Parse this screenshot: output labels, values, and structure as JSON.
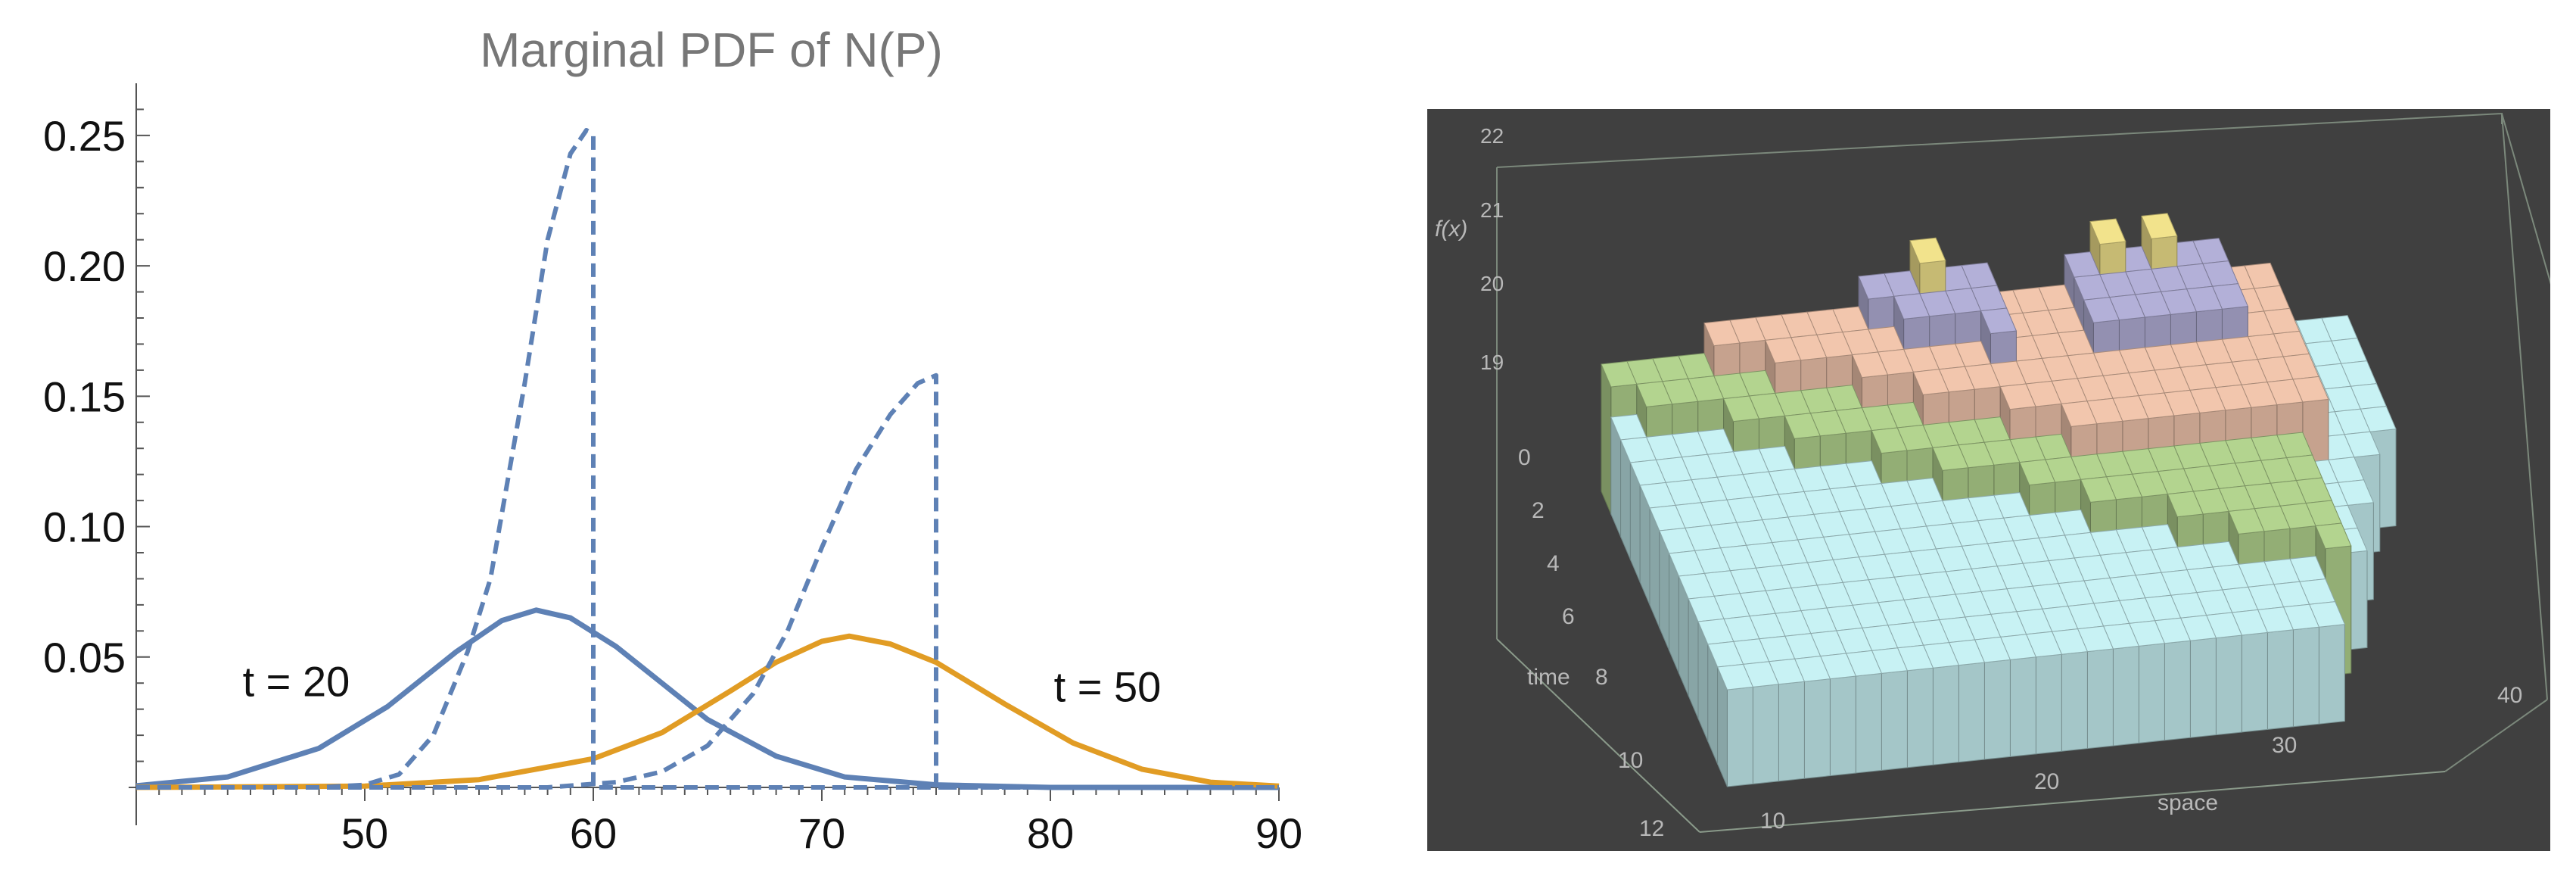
{
  "chart_data": [
    {
      "type": "line",
      "title": "Marginal PDF of N(P)",
      "xlabel": "",
      "ylabel": "",
      "xlim": [
        40,
        90
      ],
      "ylim": [
        0,
        0.27
      ],
      "x_ticks": [
        "50",
        "60",
        "70",
        "80",
        "90"
      ],
      "y_ticks": [
        "0.05",
        "0.10",
        "0.15",
        "0.20",
        "0.25"
      ],
      "y_tick_values": [
        0.05,
        0.1,
        0.15,
        0.2,
        0.25
      ],
      "x_tick_values": [
        50,
        60,
        70,
        80,
        90
      ],
      "annotations": [
        {
          "text": "t = 20",
          "x": 47,
          "y": 0.035
        },
        {
          "text": "t = 50",
          "x": 82.5,
          "y": 0.033
        }
      ],
      "series": [
        {
          "color": "#5e81b5",
          "style": "solid",
          "x": [
            40,
            44,
            48,
            51,
            54,
            56,
            57.5,
            59,
            61,
            63,
            65,
            68,
            71,
            75,
            80,
            85,
            90
          ],
          "y": [
            0.0006,
            0.004,
            0.015,
            0.031,
            0.052,
            0.064,
            0.068,
            0.065,
            0.054,
            0.04,
            0.026,
            0.012,
            0.004,
            0.001,
            0.0,
            0.0,
            0.0
          ]
        },
        {
          "color": "#e19c24",
          "style": "solid",
          "x": [
            40,
            50,
            55,
            60,
            63,
            66,
            68,
            70,
            71.2,
            73,
            75,
            78,
            81,
            84,
            87,
            90
          ],
          "y": [
            0.0,
            0.0005,
            0.003,
            0.011,
            0.021,
            0.037,
            0.048,
            0.056,
            0.058,
            0.055,
            0.048,
            0.032,
            0.017,
            0.007,
            0.002,
            0.0005
          ]
        },
        {
          "color": "#5e81b5",
          "style": "dashed",
          "x": [
            40,
            48,
            50,
            51.5,
            53,
            54.5,
            55.5,
            57,
            58,
            59,
            59.7,
            60,
            60,
            61,
            63,
            66,
            70,
            75,
            80,
            90
          ],
          "y": [
            0.0,
            0.0,
            0.001,
            0.005,
            0.02,
            0.052,
            0.08,
            0.155,
            0.21,
            0.243,
            0.252,
            0.25,
            0.0,
            0.0,
            0.0,
            0.0,
            0.0,
            0.0,
            0.0,
            0.0
          ]
        },
        {
          "color": "#5e81b5",
          "style": "dashed",
          "x": [
            40,
            58,
            61,
            63,
            65,
            67,
            68.5,
            70,
            71.5,
            73,
            74.2,
            75,
            75,
            80,
            90
          ],
          "y": [
            0.0,
            0.0,
            0.002,
            0.006,
            0.016,
            0.036,
            0.06,
            0.092,
            0.122,
            0.143,
            0.155,
            0.158,
            0.0,
            0.0,
            0.0
          ]
        }
      ]
    },
    {
      "type": "3d-bar",
      "background": "#404040",
      "xlabel": "space",
      "ylabel": "time",
      "zlabel": "f(x)",
      "x_ticks": [
        "10",
        "20",
        "30",
        "40"
      ],
      "y_ticks": [
        "0",
        "2",
        "4",
        "6",
        "8",
        "10",
        "12"
      ],
      "z_ticks": [
        "19",
        "20",
        "21",
        "22"
      ],
      "colors": {
        "level_19": "#c8f2f4",
        "level_20": "#b3d48f",
        "level_21": "#f2c6ad",
        "level_22": "#b3b0d8",
        "level_23": "#f2e38c"
      }
    }
  ]
}
